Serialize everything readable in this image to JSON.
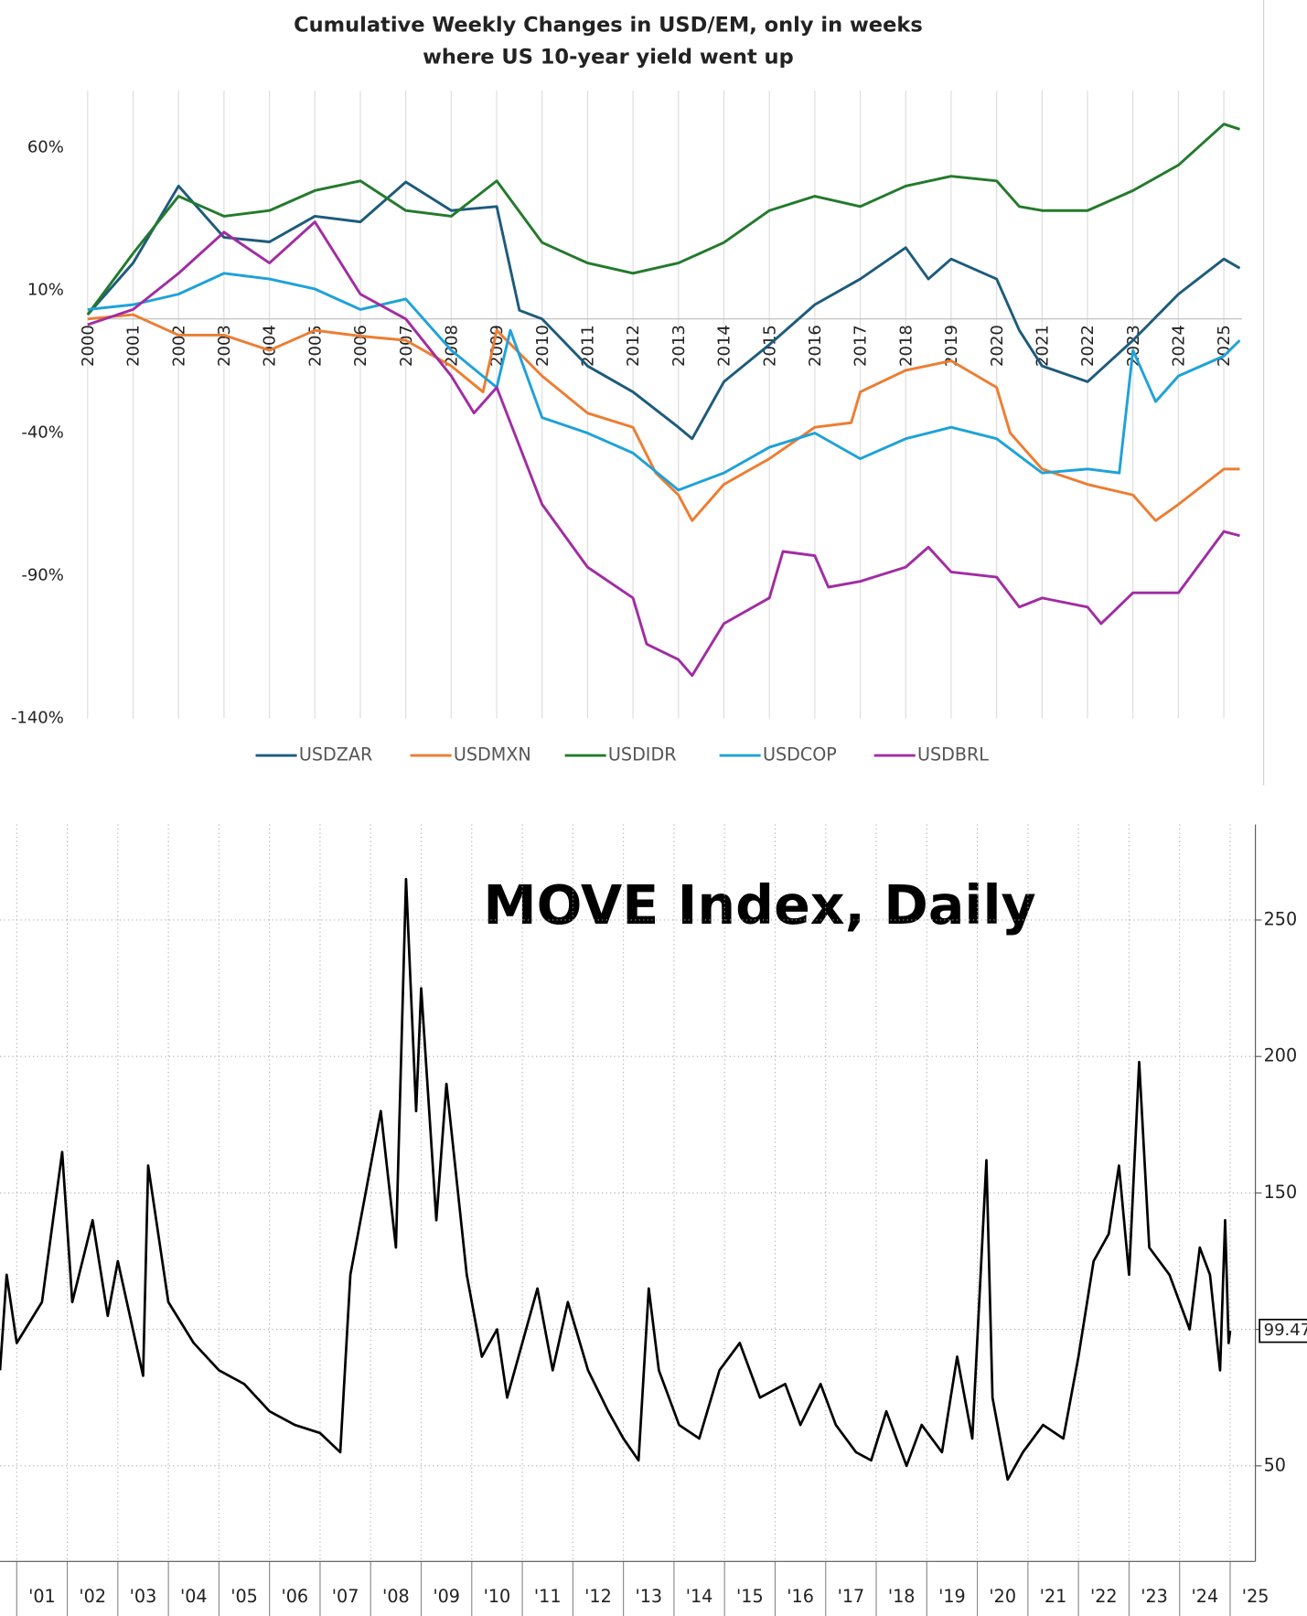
{
  "chart_data": [
    {
      "type": "line",
      "title_lines": [
        "Cumulative Weekly Changes in USD/EM, only in weeks",
        "where US 10-year yield went up"
      ],
      "xlim": [
        2000,
        2025.4
      ],
      "xticks": [
        2000,
        2001,
        2002,
        2003,
        2004,
        2005,
        2006,
        2007,
        2008,
        2009,
        2010,
        2011,
        2012,
        2013,
        2014,
        2015,
        2016,
        2017,
        2018,
        2019,
        2020,
        2021,
        2022,
        2023,
        2024,
        2025
      ],
      "ylim": [
        -140,
        80
      ],
      "yticks": [
        {
          "value": 60,
          "label": "60%"
        },
        {
          "value": 10,
          "label": "10%"
        },
        {
          "value": -40,
          "label": "-40%"
        },
        {
          "value": -90,
          "label": "-90%"
        },
        {
          "value": -140,
          "label": "-140%"
        }
      ],
      "grid": "x",
      "legend": "bottom",
      "series": [
        {
          "name": "USDZAR",
          "color": "#1d5b7c",
          "x": [
            2000,
            2001,
            2002,
            2003,
            2004,
            2005,
            2006,
            2007,
            2008,
            2009,
            2009.5,
            2010,
            2011,
            2012,
            2013,
            2013.3,
            2014,
            2015,
            2016,
            2017,
            2018,
            2018.5,
            2019,
            2020,
            2020.5,
            2021,
            2022,
            2023,
            2024,
            2025,
            2025.35
          ],
          "values": [
            1.5,
            19.6,
            46.6,
            28.6,
            27,
            36,
            34,
            48,
            38,
            39.4,
            3,
            0,
            -16.5,
            -25.6,
            -38,
            -42,
            -22,
            -9,
            5,
            14,
            25,
            14,
            21,
            14,
            -4,
            -16.5,
            -22,
            -7.5,
            8.7,
            21,
            17.8
          ]
        },
        {
          "name": "USDMXN",
          "color": "#ed7d31",
          "x": [
            2000,
            2001,
            2002,
            2003,
            2004,
            2005,
            2006,
            2007,
            2008,
            2008.7,
            2009,
            2010,
            2011,
            2012,
            2012.5,
            2013,
            2013.3,
            2014,
            2015,
            2016,
            2016.8,
            2017,
            2018,
            2019,
            2020,
            2020.3,
            2021,
            2022,
            2023,
            2023.5,
            2024,
            2025,
            2025.35
          ],
          "values": [
            0,
            1.5,
            -5.7,
            -5.7,
            -11,
            -4,
            -6,
            -7.5,
            -16.5,
            -25.6,
            -4,
            -20,
            -33,
            -38,
            -54,
            -61.7,
            -70.7,
            -58,
            -49,
            -38,
            -36.4,
            -25.6,
            -18,
            -14.7,
            -24,
            -40,
            -52.6,
            -58,
            -61.7,
            -70.7,
            -65,
            -52.6,
            -52.6
          ]
        },
        {
          "name": "USDIDR",
          "color": "#237a2c",
          "x": [
            2000,
            2001,
            2002,
            2003,
            2004,
            2005,
            2006,
            2007,
            2008,
            2009,
            2010,
            2011,
            2012,
            2013,
            2014,
            2015,
            2016,
            2017,
            2018,
            2019,
            2020,
            2020.5,
            2021,
            2022,
            2023,
            2024,
            2025,
            2025.35
          ],
          "values": [
            1.5,
            23,
            43,
            36,
            38,
            45,
            48.4,
            38,
            36,
            48.4,
            26.8,
            19.6,
            16,
            19.6,
            26.8,
            38,
            43,
            39.4,
            46.6,
            50,
            48.4,
            39.4,
            38,
            38,
            45,
            53.9,
            68.3,
            66.5
          ]
        },
        {
          "name": "USDCOP",
          "color": "#1ea2d8",
          "x": [
            2000,
            2001,
            2002,
            2003,
            2004,
            2005,
            2006,
            2007,
            2008,
            2009,
            2009.3,
            2010,
            2011,
            2012,
            2013,
            2014,
            2015,
            2016,
            2017,
            2018,
            2019,
            2020,
            2021,
            2022,
            2022.7,
            2023,
            2023.5,
            2024,
            2025,
            2025.35
          ],
          "values": [
            3.3,
            5,
            8.7,
            16,
            14,
            10.5,
            3.3,
            7,
            -11,
            -24,
            -4,
            -34.6,
            -40,
            -47,
            -60,
            -54,
            -45,
            -40,
            -49,
            -42,
            -38,
            -42,
            -54,
            -52.6,
            -54,
            -11,
            -29,
            -20,
            -13,
            -7.5
          ]
        },
        {
          "name": "USDBRL",
          "color": "#a12ca3",
          "x": [
            2000,
            2001,
            2002,
            2003,
            2004,
            2005,
            2006,
            2007,
            2008,
            2008.5,
            2009,
            2010,
            2011,
            2012,
            2012.3,
            2013,
            2013.3,
            2014,
            2015,
            2015.3,
            2016,
            2016.3,
            2017,
            2018,
            2018.5,
            2019,
            2020,
            2020.5,
            2021,
            2022,
            2022.3,
            2023,
            2024,
            2025,
            2025.35
          ],
          "values": [
            -2,
            3.3,
            16,
            30.4,
            19.6,
            34,
            8.7,
            0,
            -20,
            -33,
            -24,
            -65,
            -87,
            -97.8,
            -114,
            -119.4,
            -125,
            -106.8,
            -97.8,
            -81.5,
            -83,
            -94,
            -92,
            -87,
            -80,
            -88.7,
            -90.5,
            -101,
            -97.8,
            -101,
            -106.8,
            -96,
            -96,
            -74.5,
            -76
          ]
        }
      ]
    },
    {
      "type": "line",
      "title": "MOVE Index, Daily",
      "xlim": [
        2000.67,
        2025.5
      ],
      "xticks": [
        {
          "value": 2001,
          "label": "'01"
        },
        {
          "value": 2002,
          "label": "'02"
        },
        {
          "value": 2003,
          "label": "'03"
        },
        {
          "value": 2004,
          "label": "'04"
        },
        {
          "value": 2005,
          "label": "'05"
        },
        {
          "value": 2006,
          "label": "'06"
        },
        {
          "value": 2007,
          "label": "'07"
        },
        {
          "value": 2008,
          "label": "'08"
        },
        {
          "value": 2009,
          "label": "'09"
        },
        {
          "value": 2010,
          "label": "'10"
        },
        {
          "value": 2011,
          "label": "'11"
        },
        {
          "value": 2012,
          "label": "'12"
        },
        {
          "value": 2013,
          "label": "'13"
        },
        {
          "value": 2014,
          "label": "'14"
        },
        {
          "value": 2015,
          "label": "'15"
        },
        {
          "value": 2016,
          "label": "'16"
        },
        {
          "value": 2017,
          "label": "'17"
        },
        {
          "value": 2018,
          "label": "'18"
        },
        {
          "value": 2019,
          "label": "'19"
        },
        {
          "value": 2020,
          "label": "'20"
        },
        {
          "value": 2021,
          "label": "'21"
        },
        {
          "value": 2022,
          "label": "'22"
        },
        {
          "value": 2023,
          "label": "'23"
        },
        {
          "value": 2024,
          "label": "'24"
        },
        {
          "value": 2025,
          "label": "'25"
        }
      ],
      "ylim": [
        15,
        285
      ],
      "yticks": [
        50,
        100,
        150,
        200,
        250
      ],
      "grid": true,
      "last_label": "99.47",
      "series": [
        {
          "name": "MOVE",
          "color": "#000000",
          "x": [
            2000.67,
            2000.8,
            2001.0,
            2001.5,
            2001.9,
            2002.1,
            2002.5,
            2002.8,
            2003.0,
            2003.5,
            2003.6,
            2004,
            2004.5,
            2005,
            2005.5,
            2006,
            2006.5,
            2007,
            2007.4,
            2007.6,
            2007.9,
            2008.2,
            2008.5,
            2008.7,
            2008.9,
            2009.0,
            2009.3,
            2009.5,
            2009.9,
            2010.2,
            2010.5,
            2010.7,
            2011.3,
            2011.6,
            2011.9,
            2012.3,
            2012.7,
            2013.0,
            2013.3,
            2013.5,
            2013.7,
            2014.1,
            2014.5,
            2014.9,
            2015.3,
            2015.7,
            2016.2,
            2016.5,
            2016.9,
            2017.2,
            2017.6,
            2017.9,
            2018.2,
            2018.6,
            2018.9,
            2019.3,
            2019.6,
            2019.9,
            2020.18,
            2020.3,
            2020.6,
            2020.9,
            2021.3,
            2021.7,
            2022.0,
            2022.3,
            2022.6,
            2022.8,
            2023.0,
            2023.2,
            2023.4,
            2023.8,
            2024.2,
            2024.4,
            2024.6,
            2024.8,
            2024.9,
            2024.97,
            2025.0
          ],
          "values": [
            85,
            120,
            95,
            110,
            165,
            110,
            140,
            105,
            125,
            83,
            160,
            110,
            95,
            85,
            80,
            70,
            65,
            62,
            55,
            120,
            150,
            180,
            130,
            265,
            180,
            225,
            140,
            190,
            120,
            90,
            100,
            75,
            115,
            85,
            110,
            85,
            70,
            60,
            52,
            115,
            85,
            65,
            60,
            85,
            95,
            75,
            80,
            65,
            80,
            65,
            55,
            52,
            70,
            50,
            65,
            55,
            90,
            60,
            162,
            75,
            45,
            55,
            65,
            60,
            90,
            125,
            135,
            160,
            120,
            198,
            130,
            120,
            100,
            130,
            120,
            85,
            140,
            95,
            99.47
          ]
        }
      ]
    }
  ]
}
